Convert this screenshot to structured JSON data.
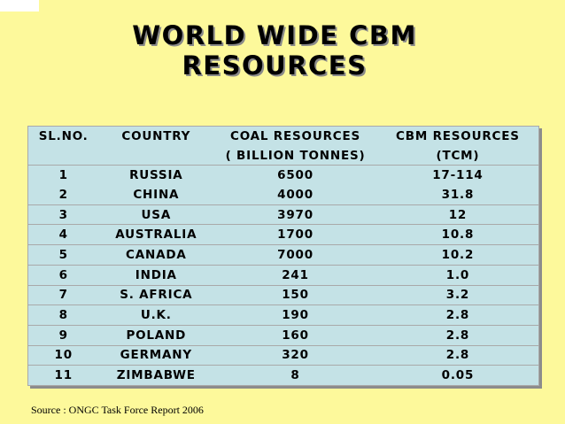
{
  "title": {
    "line1": "WORLD WIDE CBM",
    "line2": "RESOURCES"
  },
  "table": {
    "headers": {
      "sl": "SL.NO.",
      "country": "COUNTRY",
      "coal_line1": "COAL RESOURCES",
      "coal_line2": "( BILLION TONNES)",
      "cbm_line1": "CBM RESOURCES",
      "cbm_line2": "(TCM)"
    },
    "rows": [
      {
        "sl": "1",
        "country": "RUSSIA",
        "coal": "6500",
        "cbm": "17-114"
      },
      {
        "sl": "2",
        "country": "CHINA",
        "coal": "4000",
        "cbm": "31.8"
      },
      {
        "sl": "3",
        "country": "USA",
        "coal": "3970",
        "cbm": "12"
      },
      {
        "sl": "4",
        "country": "AUSTRALIA",
        "coal": "1700",
        "cbm": "10.8"
      },
      {
        "sl": "5",
        "country": "CANADA",
        "coal": "7000",
        "cbm": "10.2"
      },
      {
        "sl": "6",
        "country": "INDIA",
        "coal": "241",
        "cbm": "1.0"
      },
      {
        "sl": "7",
        "country": "S. AFRICA",
        "coal": "150",
        "cbm": "3.2"
      },
      {
        "sl": "8",
        "country": "U.K.",
        "coal": "190",
        "cbm": "2.8"
      },
      {
        "sl": "9",
        "country": "POLAND",
        "coal": "160",
        "cbm": "2.8"
      },
      {
        "sl": "10",
        "country": "GERMANY",
        "coal": "320",
        "cbm": "2.8"
      },
      {
        "sl": "11",
        "country": "ZIMBABWE",
        "coal": "8",
        "cbm": "0.05"
      }
    ]
  },
  "source": "Source : ONGC Task Force Report 2006",
  "colors": {
    "background": "#fdf99b",
    "table_fill": "#c4e2e6"
  }
}
